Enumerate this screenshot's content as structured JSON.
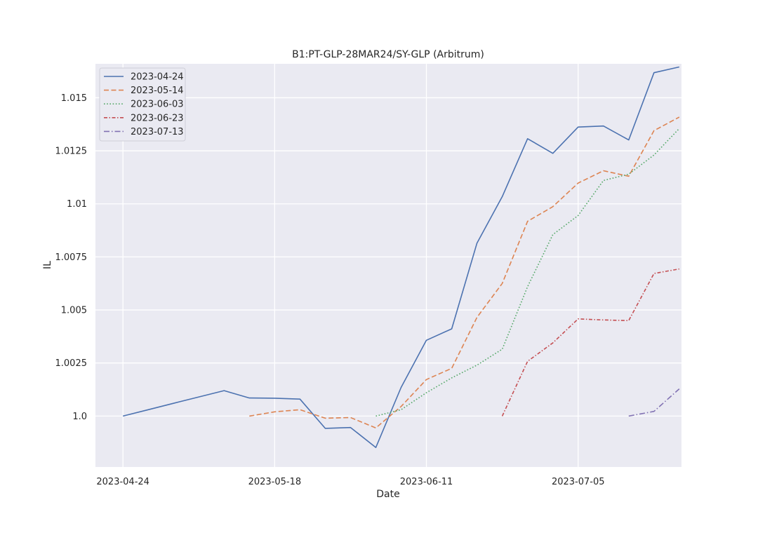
{
  "chart_data": {
    "type": "line",
    "title": "B1:PT-GLP-28MAR24/SY-GLP (Arbitrum)",
    "xlabel": "Date",
    "ylabel": "IL",
    "x_ticks": [
      "2023-04-24",
      "2023-05-18",
      "2023-06-11",
      "2023-07-05"
    ],
    "y_ticks": [
      {
        "value": 1.0,
        "label": "1.0"
      },
      {
        "value": 1.0025,
        "label": "1.0025"
      },
      {
        "value": 1.005,
        "label": "1.005"
      },
      {
        "value": 1.0075,
        "label": "1.0075"
      },
      {
        "value": 1.01,
        "label": "1.01"
      },
      {
        "value": 1.0125,
        "label": "1.0125"
      },
      {
        "value": 1.015,
        "label": "1.015"
      }
    ],
    "xlim": [
      "2023-04-20",
      "2023-07-21"
    ],
    "ylim": [
      0.9976,
      1.0166
    ],
    "grid": true,
    "legend_position": "top-left",
    "series": [
      {
        "name": "2023-04-24",
        "color": "#4c72b0",
        "dash": "solid",
        "points": [
          [
            "2023-04-24",
            1.0
          ],
          [
            "2023-04-28",
            1.0003
          ],
          [
            "2023-05-02",
            1.0006
          ],
          [
            "2023-05-06",
            1.0009
          ],
          [
            "2023-05-10",
            1.0012
          ],
          [
            "2023-05-14",
            1.00085
          ],
          [
            "2023-05-18",
            1.00084
          ],
          [
            "2023-05-22",
            1.0008
          ],
          [
            "2023-05-26",
            0.99942
          ],
          [
            "2023-05-30",
            0.99946
          ],
          [
            "2023-06-03",
            0.99852
          ],
          [
            "2023-06-07",
            1.00135
          ],
          [
            "2023-06-11",
            1.00357
          ],
          [
            "2023-06-15",
            1.00411
          ],
          [
            "2023-06-19",
            1.00815
          ],
          [
            "2023-06-23",
            1.01034
          ],
          [
            "2023-06-27",
            1.01307
          ],
          [
            "2023-07-01",
            1.01238
          ],
          [
            "2023-07-05",
            1.01362
          ],
          [
            "2023-07-09",
            1.01367
          ],
          [
            "2023-07-13",
            1.01301
          ],
          [
            "2023-07-17",
            1.01618
          ],
          [
            "2023-07-21",
            1.01645
          ]
        ]
      },
      {
        "name": "2023-05-14",
        "color": "#dd8452",
        "dash": "dashed",
        "points": [
          [
            "2023-05-14",
            1.0
          ],
          [
            "2023-05-18",
            1.0002
          ],
          [
            "2023-05-22",
            1.0003
          ],
          [
            "2023-05-26",
            0.9999
          ],
          [
            "2023-05-30",
            0.99993
          ],
          [
            "2023-06-03",
            0.99944
          ],
          [
            "2023-06-07",
            1.00045
          ],
          [
            "2023-06-11",
            1.00172
          ],
          [
            "2023-06-15",
            1.00225
          ],
          [
            "2023-06-19",
            1.00465
          ],
          [
            "2023-06-23",
            1.00625
          ],
          [
            "2023-06-27",
            1.00918
          ],
          [
            "2023-07-01",
            1.00987
          ],
          [
            "2023-07-05",
            1.01098
          ],
          [
            "2023-07-09",
            1.01156
          ],
          [
            "2023-07-13",
            1.0113
          ],
          [
            "2023-07-17",
            1.01345
          ],
          [
            "2023-07-21",
            1.01409
          ]
        ]
      },
      {
        "name": "2023-06-03",
        "color": "#55a868",
        "dash": "dotted",
        "points": [
          [
            "2023-06-03",
            1.0
          ],
          [
            "2023-06-07",
            1.0003
          ],
          [
            "2023-06-11",
            1.0011
          ],
          [
            "2023-06-15",
            1.0018
          ],
          [
            "2023-06-19",
            1.0024
          ],
          [
            "2023-06-23",
            1.00315
          ],
          [
            "2023-06-27",
            1.0061
          ],
          [
            "2023-07-01",
            1.00855
          ],
          [
            "2023-07-05",
            1.00945
          ],
          [
            "2023-07-09",
            1.0111
          ],
          [
            "2023-07-13",
            1.0114
          ],
          [
            "2023-07-17",
            1.0123
          ],
          [
            "2023-07-21",
            1.01355
          ]
        ]
      },
      {
        "name": "2023-06-23",
        "color": "#c44e52",
        "dash": "dashdot-fine",
        "points": [
          [
            "2023-06-23",
            1.0
          ],
          [
            "2023-06-27",
            1.00258
          ],
          [
            "2023-07-01",
            1.00345
          ],
          [
            "2023-07-05",
            1.00458
          ],
          [
            "2023-07-09",
            1.00453
          ],
          [
            "2023-07-13",
            1.0045
          ],
          [
            "2023-07-17",
            1.00672
          ],
          [
            "2023-07-21",
            1.00693
          ]
        ]
      },
      {
        "name": "2023-07-13",
        "color": "#8172b3",
        "dash": "dashdot",
        "points": [
          [
            "2023-07-13",
            1.0
          ],
          [
            "2023-07-17",
            1.00022
          ],
          [
            "2023-07-21",
            1.00128
          ]
        ]
      }
    ]
  }
}
